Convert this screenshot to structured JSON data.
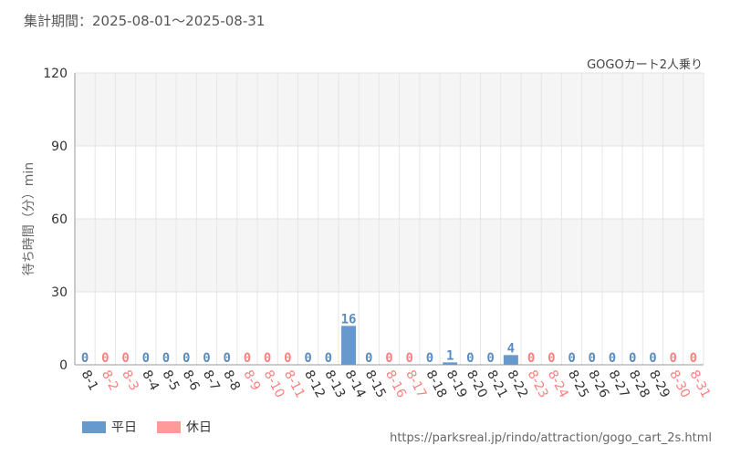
{
  "header": {
    "period_label": "集計期間：2025-08-01～2025-08-31"
  },
  "source_url": "https://parksreal.jp/rindo/attraction/gogo_cart_2s.html",
  "colors": {
    "weekday": "#6699cc",
    "holiday": "#ff9a9a",
    "weekday_text": "#5b8cc0",
    "holiday_text": "#ff8080"
  },
  "chart_data": {
    "type": "bar",
    "title": "GOGOカート2人乗り",
    "ylabel": "待ち時間（分）min",
    "xlabel": "",
    "ylim": [
      0,
      120
    ],
    "yticks": [
      0,
      30,
      60,
      90,
      120
    ],
    "grid": true,
    "legend_position": "bottom-left",
    "categories": [
      "8-1",
      "8-2",
      "8-3",
      "8-4",
      "8-5",
      "8-6",
      "8-7",
      "8-8",
      "8-9",
      "8-10",
      "8-11",
      "8-12",
      "8-13",
      "8-14",
      "8-15",
      "8-16",
      "8-17",
      "8-18",
      "8-19",
      "8-20",
      "8-21",
      "8-22",
      "8-23",
      "8-24",
      "8-25",
      "8-26",
      "8-27",
      "8-28",
      "8-29",
      "8-30",
      "8-31"
    ],
    "values": [
      0,
      0,
      0,
      0,
      0,
      0,
      0,
      0,
      0,
      0,
      0,
      0,
      0,
      16,
      0,
      0,
      0,
      0,
      1,
      0,
      0,
      4,
      0,
      0,
      0,
      0,
      0,
      0,
      0,
      0,
      0
    ],
    "day_type": [
      "weekday",
      "holiday",
      "holiday",
      "weekday",
      "weekday",
      "weekday",
      "weekday",
      "weekday",
      "holiday",
      "holiday",
      "holiday",
      "weekday",
      "weekday",
      "weekday",
      "weekday",
      "holiday",
      "holiday",
      "weekday",
      "weekday",
      "weekday",
      "weekday",
      "weekday",
      "holiday",
      "holiday",
      "weekday",
      "weekday",
      "weekday",
      "weekday",
      "weekday",
      "holiday",
      "holiday"
    ],
    "series": [
      {
        "name": "平日",
        "key": "weekday"
      },
      {
        "name": "休日",
        "key": "holiday"
      }
    ]
  }
}
